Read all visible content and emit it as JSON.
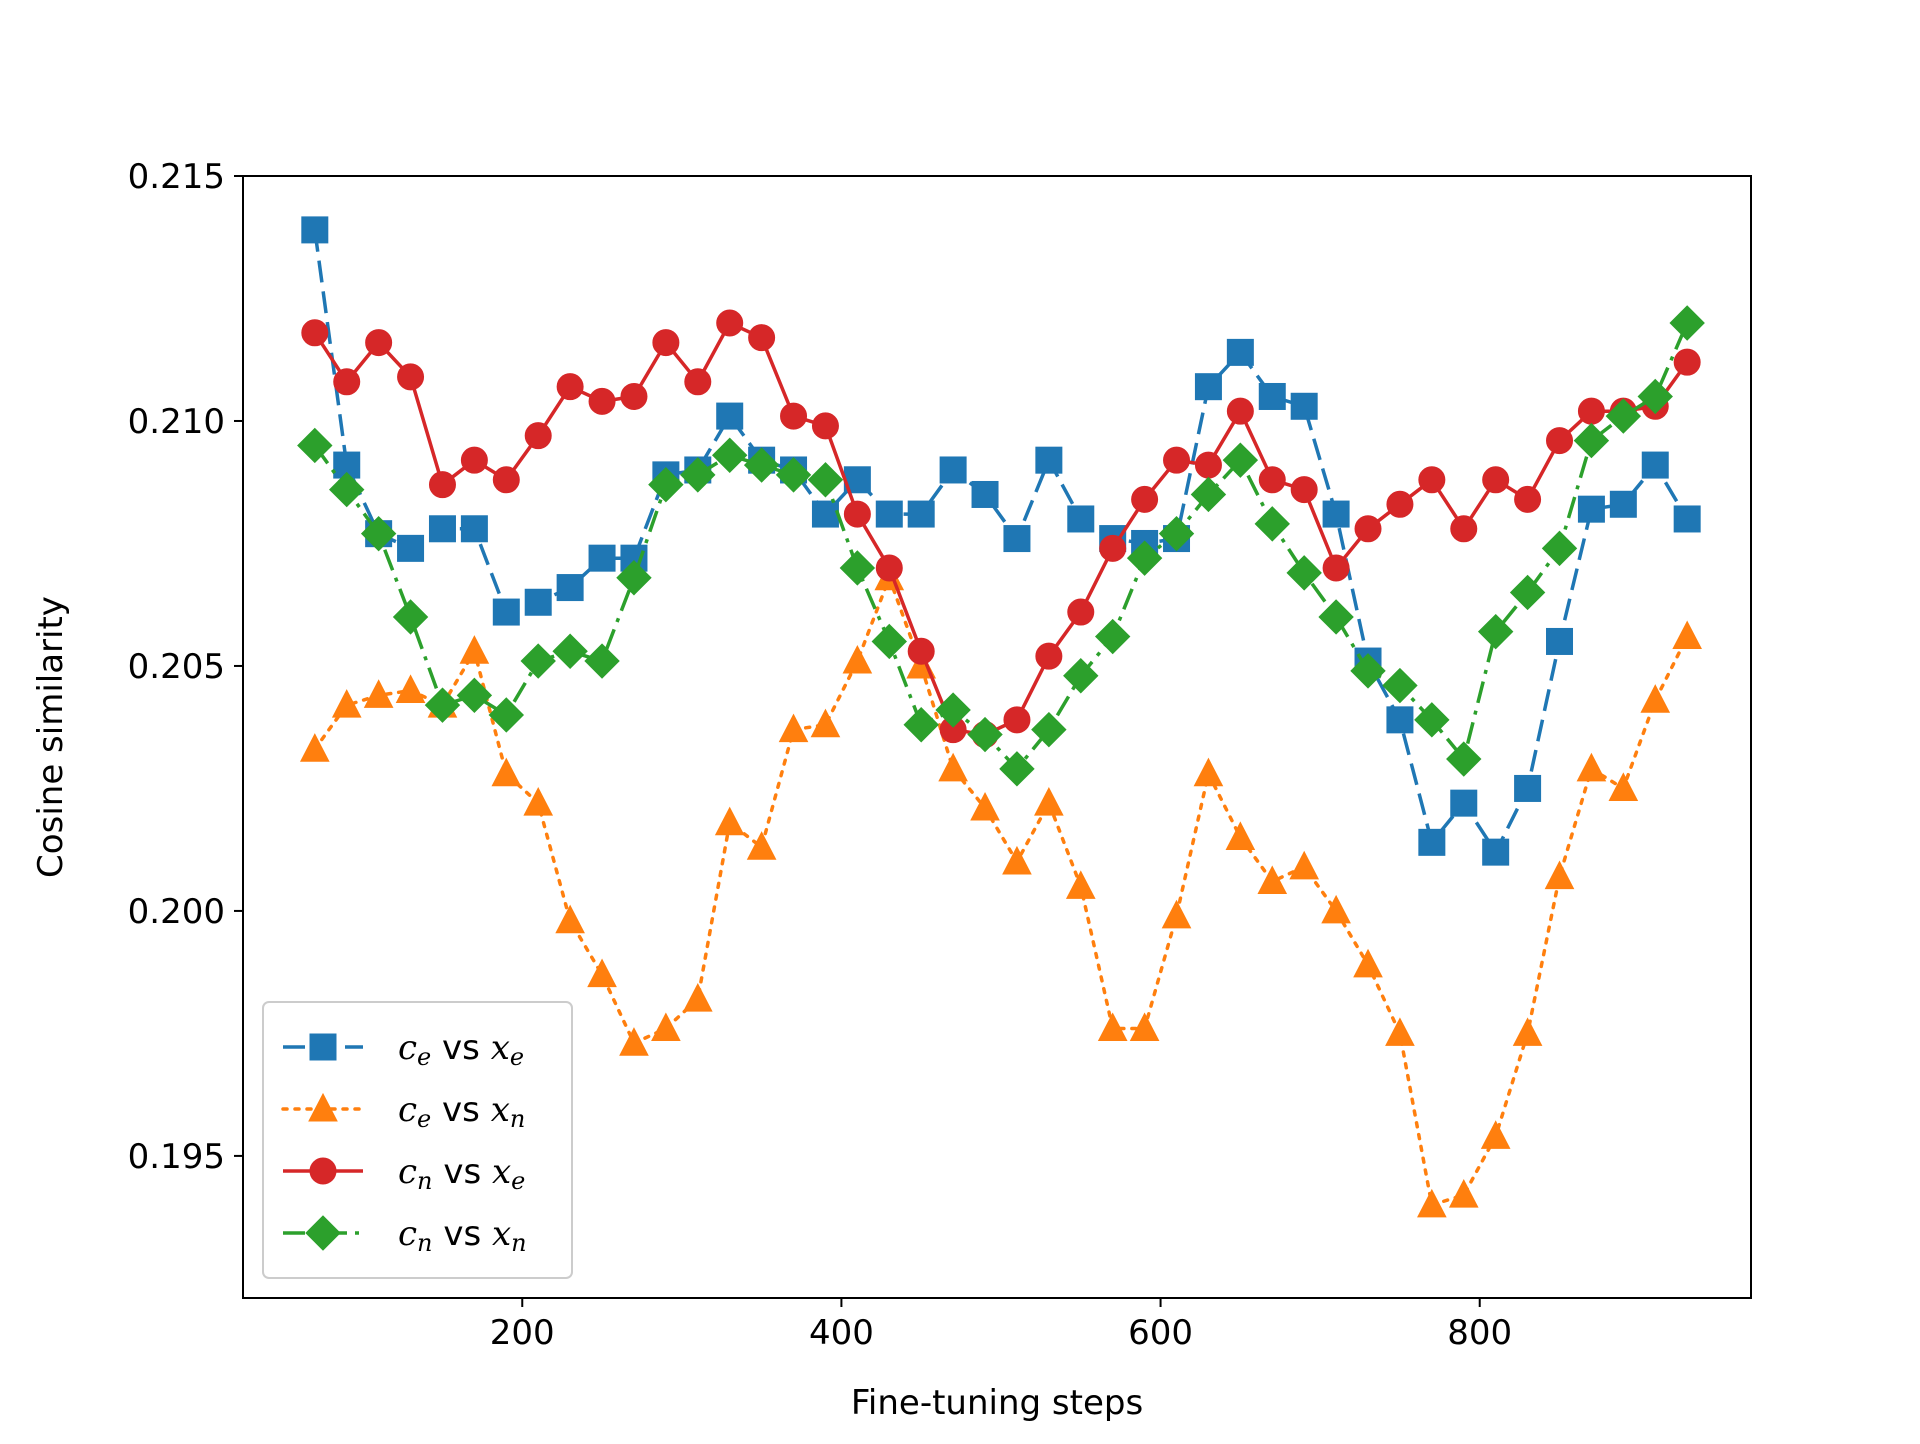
{
  "chart_data": {
    "type": "line",
    "title": "",
    "xlabel": "Fine-tuning steps",
    "ylabel": "Cosine similarity",
    "xlim": [
      25,
      970
    ],
    "ylim": [
      0.1921,
      0.215
    ],
    "xticks": [
      200,
      400,
      600,
      800
    ],
    "xtick_labels": [
      "200",
      "400",
      "600",
      "800"
    ],
    "yticks": [
      0.195,
      0.2,
      0.205,
      0.21,
      0.215
    ],
    "ytick_labels": [
      "0.195",
      "0.200",
      "0.205",
      "0.210",
      "0.215"
    ],
    "grid": false,
    "legend_position": "lower-left",
    "x": [
      70,
      90,
      110,
      130,
      150,
      170,
      190,
      210,
      230,
      250,
      270,
      290,
      310,
      330,
      350,
      370,
      390,
      410,
      430,
      450,
      470,
      490,
      510,
      530,
      550,
      570,
      590,
      610,
      630,
      650,
      670,
      690,
      710,
      730,
      750,
      770,
      790,
      810,
      830,
      850,
      870,
      890,
      910,
      930
    ],
    "series": [
      {
        "name": "c_e vs x_e",
        "legend": {
          "a": "c",
          "a_sub": "e",
          "vs": "vs",
          "b": "x",
          "b_sub": "e"
        },
        "color": "#1f77b4",
        "marker": "square",
        "linestyle": "dashed",
        "values": [
          0.2139,
          0.2091,
          0.2077,
          0.2074,
          0.2078,
          0.2078,
          0.2061,
          0.2063,
          0.2066,
          0.2072,
          0.2072,
          0.2089,
          0.209,
          0.2101,
          0.2092,
          0.209,
          0.2081,
          0.2088,
          0.2081,
          0.2081,
          0.209,
          0.2085,
          0.2076,
          0.2092,
          0.208,
          0.2076,
          0.2075,
          0.2076,
          0.2107,
          0.2114,
          0.2105,
          0.2103,
          0.2081,
          0.2051,
          0.2039,
          0.2014,
          0.2022,
          0.2012,
          0.2025,
          0.2055,
          0.2082,
          0.2083,
          0.2091,
          0.208
        ]
      },
      {
        "name": "c_e vs x_n",
        "legend": {
          "a": "c",
          "a_sub": "e",
          "vs": "vs",
          "b": "x",
          "b_sub": "n"
        },
        "color": "#ff7f0e",
        "marker": "triangle",
        "linestyle": "dotted",
        "values": [
          0.2033,
          0.2042,
          0.2044,
          0.2045,
          0.2042,
          0.2053,
          0.2028,
          0.2022,
          0.1998,
          0.1987,
          0.1973,
          0.1976,
          0.1982,
          0.2018,
          0.2013,
          0.2037,
          0.2038,
          0.2051,
          0.2068,
          0.205,
          0.2029,
          0.2021,
          0.201,
          0.2022,
          0.2005,
          0.1976,
          0.1976,
          0.1999,
          0.2028,
          0.2015,
          0.2006,
          0.2009,
          0.2,
          0.1989,
          0.1975,
          0.194,
          0.1942,
          0.1954,
          0.1975,
          0.2007,
          0.2029,
          0.2025,
          0.2043,
          0.2056
        ]
      },
      {
        "name": "c_n vs x_e",
        "legend": {
          "a": "c",
          "a_sub": "n",
          "vs": "vs",
          "b": "x",
          "b_sub": "e"
        },
        "color": "#d62728",
        "marker": "circle",
        "linestyle": "solid",
        "values": [
          0.2118,
          0.2108,
          0.2116,
          0.2109,
          0.2087,
          0.2092,
          0.2088,
          0.2097,
          0.2107,
          0.2104,
          0.2105,
          0.2116,
          0.2108,
          0.212,
          0.2117,
          0.2101,
          0.2099,
          0.2081,
          0.207,
          0.2053,
          0.2037,
          0.2036,
          0.2039,
          0.2052,
          0.2061,
          0.2074,
          0.2084,
          0.2092,
          0.2091,
          0.2102,
          0.2088,
          0.2086,
          0.207,
          0.2078,
          0.2083,
          0.2088,
          0.2078,
          0.2088,
          0.2084,
          0.2096,
          0.2102,
          0.2102,
          0.2103,
          0.2112
        ]
      },
      {
        "name": "c_n vs x_n",
        "legend": {
          "a": "c",
          "a_sub": "n",
          "vs": "vs",
          "b": "x",
          "b_sub": "n"
        },
        "color": "#2ca02c",
        "marker": "diamond",
        "linestyle": "dashdot",
        "values": [
          0.2095,
          0.2086,
          0.2077,
          0.206,
          0.2042,
          0.2044,
          0.204,
          0.2051,
          0.2053,
          0.2051,
          0.2068,
          0.2087,
          0.2089,
          0.2093,
          0.2091,
          0.2089,
          0.2088,
          0.207,
          0.2055,
          0.2038,
          0.2041,
          0.2036,
          0.2029,
          0.2037,
          0.2048,
          0.2056,
          0.2072,
          0.2077,
          0.2085,
          0.2092,
          0.2079,
          0.2069,
          0.206,
          0.2049,
          0.2046,
          0.2039,
          0.2031,
          0.2057,
          0.2065,
          0.2074,
          0.2096,
          0.2101,
          0.2105,
          0.212
        ]
      }
    ]
  }
}
